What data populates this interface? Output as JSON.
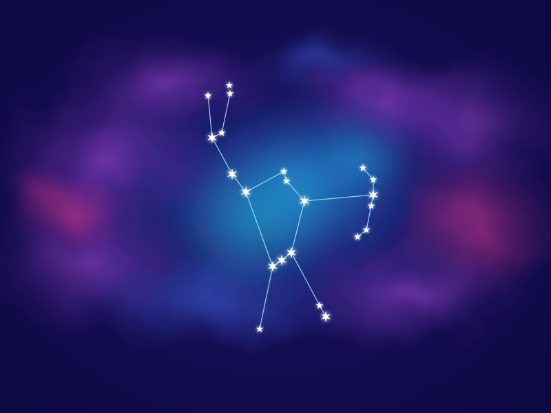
{
  "scene": {
    "subject": "constellation",
    "background": {
      "base_color": "#140d52",
      "nebula_colors": [
        "#1e8fd0",
        "#3a2f9e",
        "#9b3fb5",
        "#c23a8a",
        "#2a6fb8"
      ]
    },
    "line_color": "#8ee6ef",
    "star_color": "#ffffff",
    "star_glow_color": "#bfefff"
  }
}
